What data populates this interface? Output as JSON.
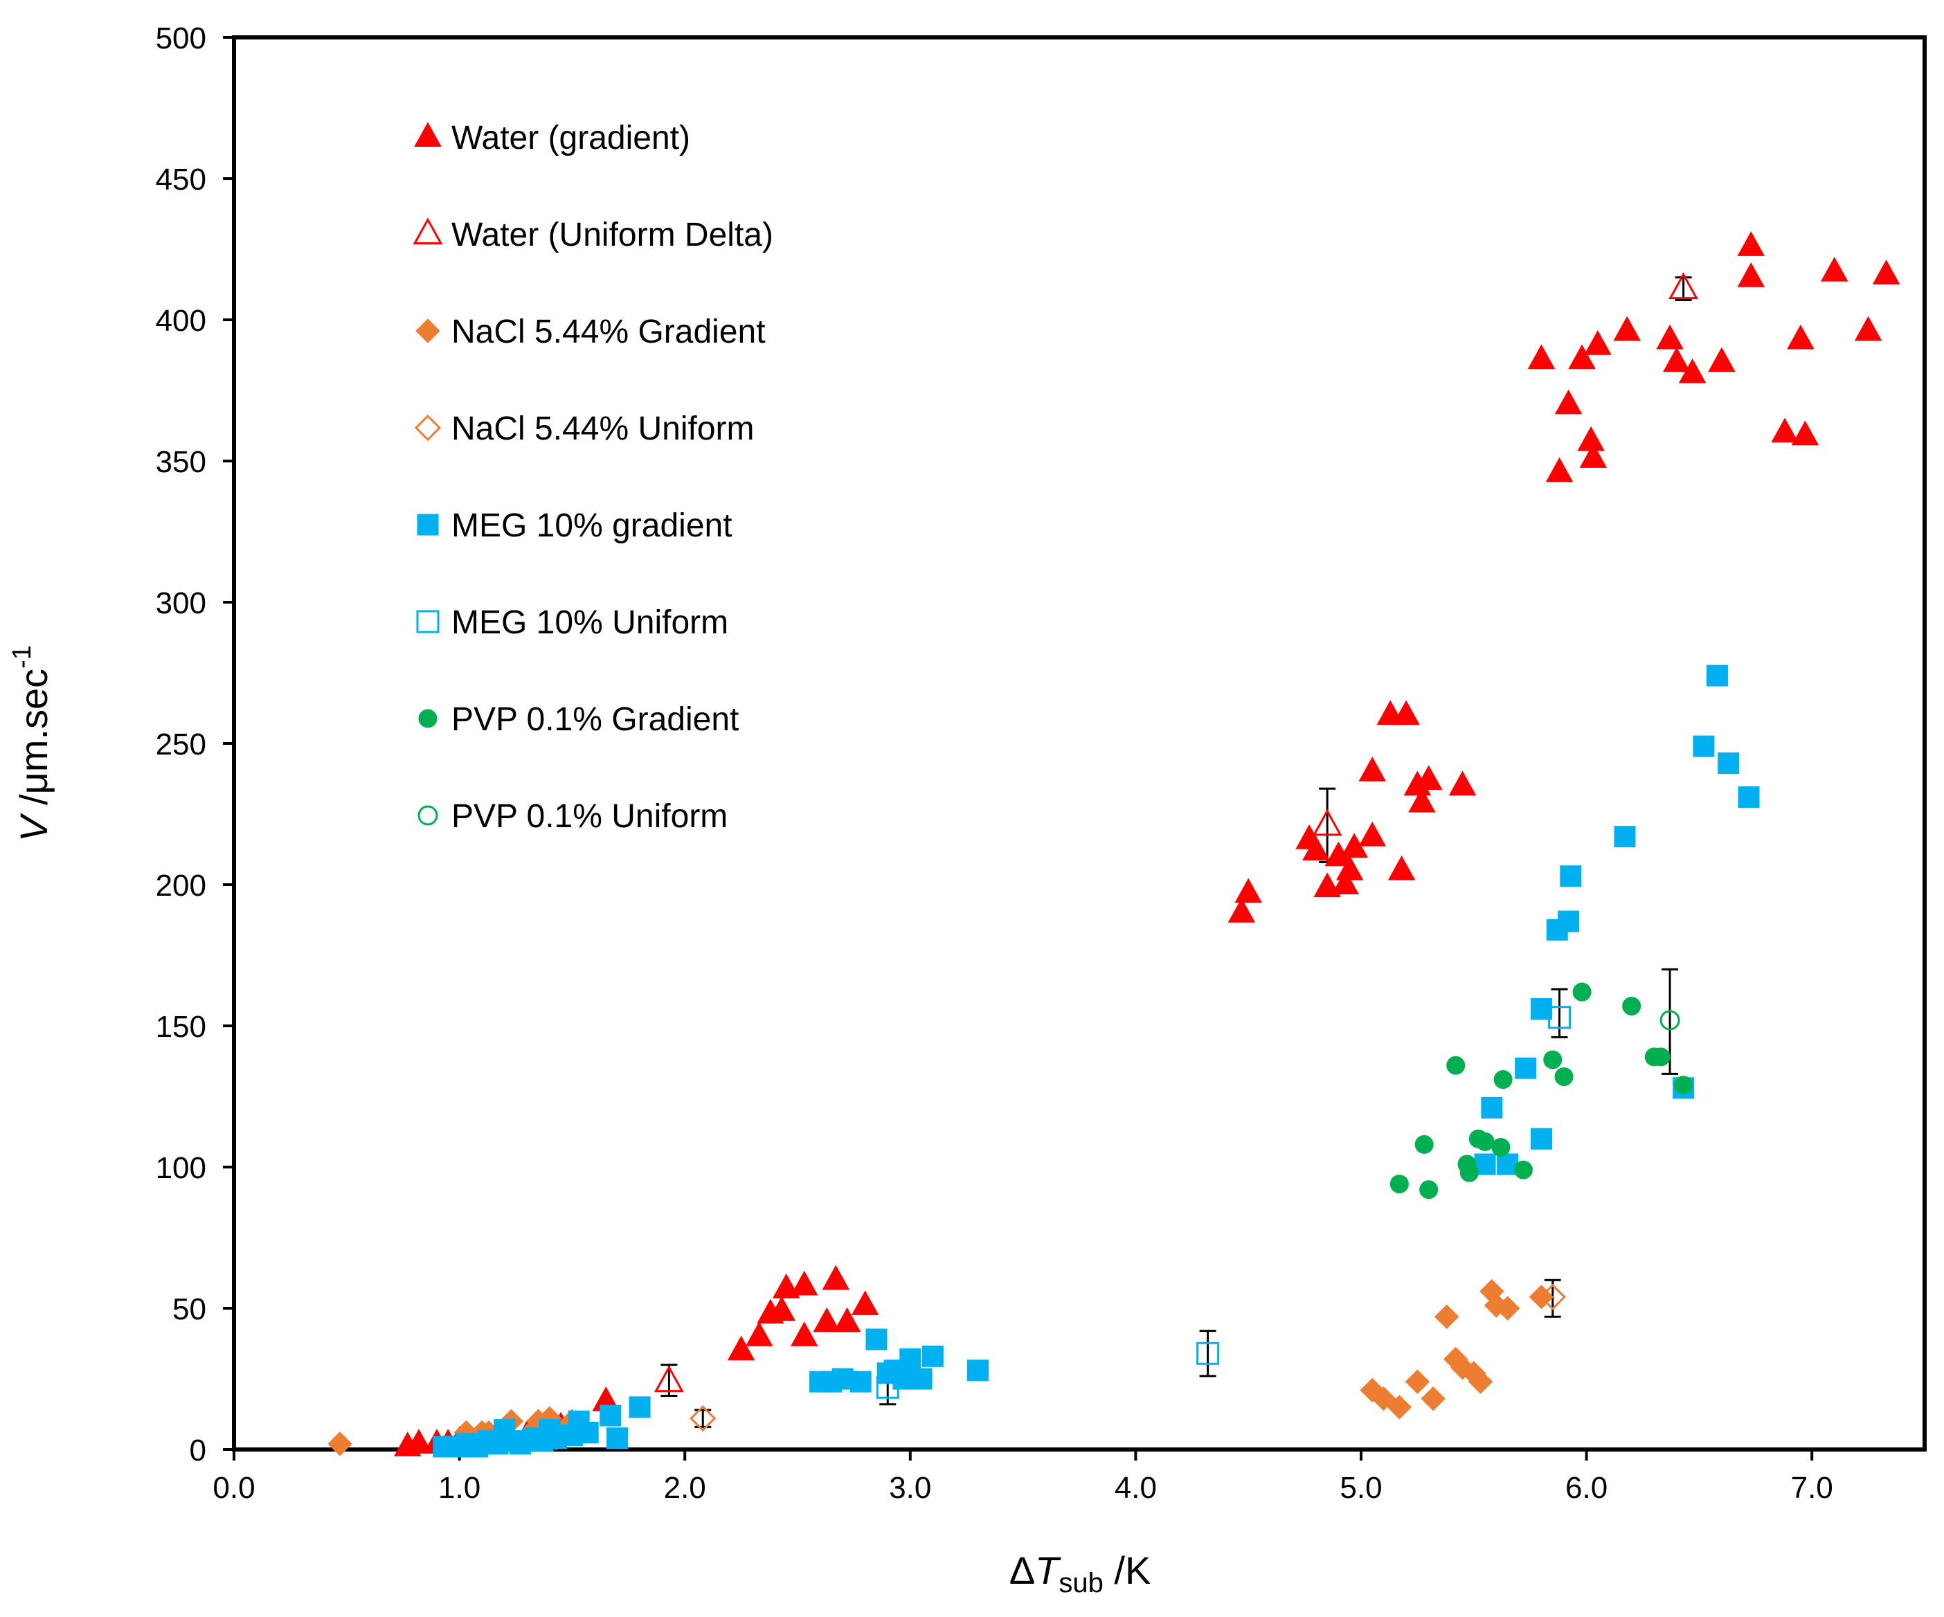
{
  "chart_data": {
    "type": "scatter",
    "title": "",
    "xlabel": {
      "delta": "Δ",
      "var": "T",
      "sub": "sub",
      "unit": " /K"
    },
    "ylabel": {
      "var": "V",
      "unit": " /μm.sec",
      "sup": "-1"
    },
    "xlim": [
      0,
      7.5
    ],
    "ylim": [
      0,
      500
    ],
    "xticks": [
      0,
      1,
      2,
      3,
      4,
      5,
      6,
      7
    ],
    "xtick_labels": [
      "0.0",
      "1.0",
      "2.0",
      "3.0",
      "4.0",
      "5.0",
      "6.0",
      "7.0"
    ],
    "yticks": [
      0,
      50,
      100,
      150,
      200,
      250,
      300,
      350,
      400,
      450,
      500
    ],
    "ytick_labels": [
      "0",
      "50",
      "100",
      "150",
      "200",
      "250",
      "300",
      "350",
      "400",
      "450",
      "500"
    ],
    "grid": false,
    "legend_position": "upper-left",
    "series": [
      {
        "name": "Water (gradient)",
        "marker": "triangle",
        "filled": true,
        "color": "#ff0000",
        "points": [
          [
            0.77,
            1
          ],
          [
            0.82,
            2
          ],
          [
            0.9,
            2
          ],
          [
            0.95,
            2
          ],
          [
            1.0,
            3
          ],
          [
            1.05,
            3
          ],
          [
            1.1,
            4
          ],
          [
            1.2,
            5
          ],
          [
            1.3,
            5
          ],
          [
            1.45,
            8
          ],
          [
            1.5,
            6
          ],
          [
            1.65,
            17
          ],
          [
            2.25,
            35
          ],
          [
            2.33,
            40
          ],
          [
            2.38,
            48
          ],
          [
            2.43,
            49
          ],
          [
            2.45,
            57
          ],
          [
            2.53,
            58
          ],
          [
            2.53,
            40
          ],
          [
            2.63,
            45
          ],
          [
            2.67,
            60
          ],
          [
            2.72,
            45
          ],
          [
            2.8,
            51
          ],
          [
            4.47,
            190
          ],
          [
            4.5,
            197
          ],
          [
            4.77,
            216
          ],
          [
            4.8,
            212
          ],
          [
            4.85,
            199
          ],
          [
            4.9,
            210
          ],
          [
            4.93,
            200
          ],
          [
            4.95,
            205
          ],
          [
            4.97,
            213
          ],
          [
            5.05,
            240
          ],
          [
            5.05,
            217
          ],
          [
            5.13,
            260
          ],
          [
            5.18,
            205
          ],
          [
            5.2,
            260
          ],
          [
            5.25,
            235
          ],
          [
            5.27,
            229
          ],
          [
            5.3,
            237
          ],
          [
            5.45,
            235
          ],
          [
            5.8,
            386
          ],
          [
            5.88,
            346
          ],
          [
            5.92,
            370
          ],
          [
            5.98,
            386
          ],
          [
            6.02,
            357
          ],
          [
            6.03,
            351
          ],
          [
            6.05,
            391
          ],
          [
            6.18,
            396
          ],
          [
            6.37,
            393
          ],
          [
            6.4,
            385
          ],
          [
            6.47,
            381
          ],
          [
            6.6,
            385
          ],
          [
            6.73,
            426
          ],
          [
            6.73,
            415
          ],
          [
            6.88,
            360
          ],
          [
            6.95,
            393
          ],
          [
            6.97,
            359
          ],
          [
            7.1,
            417
          ],
          [
            7.25,
            396
          ],
          [
            7.33,
            416
          ]
        ],
        "error_bars": []
      },
      {
        "name": "Water (Uniform Delta)",
        "marker": "triangle",
        "filled": false,
        "color": "#ff0000",
        "points": [
          [
            1.93,
            24
          ],
          [
            4.85,
            221
          ],
          [
            6.43,
            411
          ]
        ],
        "error_bars": [
          [
            1.93,
            19,
            30
          ],
          [
            4.85,
            208,
            234
          ],
          [
            6.43,
            407,
            415
          ]
        ]
      },
      {
        "name": "NaCl 5.44% Gradient",
        "marker": "diamond",
        "filled": true,
        "color": "#ed7d31",
        "points": [
          [
            0.47,
            2
          ],
          [
            1.03,
            6
          ],
          [
            1.1,
            6
          ],
          [
            1.13,
            6
          ],
          [
            1.23,
            10
          ],
          [
            1.33,
            7
          ],
          [
            1.35,
            10
          ],
          [
            1.4,
            11
          ],
          [
            1.43,
            4
          ],
          [
            1.47,
            7
          ],
          [
            1.5,
            10
          ],
          [
            5.05,
            21
          ],
          [
            5.1,
            18
          ],
          [
            5.17,
            15
          ],
          [
            5.25,
            24
          ],
          [
            5.32,
            18
          ],
          [
            5.38,
            47
          ],
          [
            5.42,
            32
          ],
          [
            5.45,
            29
          ],
          [
            5.5,
            27
          ],
          [
            5.53,
            24
          ],
          [
            5.58,
            56
          ],
          [
            5.6,
            51
          ],
          [
            5.65,
            50
          ],
          [
            5.8,
            54
          ]
        ],
        "error_bars": []
      },
      {
        "name": "NaCl 5.44% Uniform",
        "marker": "diamond",
        "filled": false,
        "color": "#ed7d31",
        "points": [
          [
            2.08,
            11
          ],
          [
            5.85,
            54
          ]
        ],
        "error_bars": [
          [
            2.08,
            8,
            14
          ],
          [
            5.85,
            47,
            60
          ]
        ]
      },
      {
        "name": "MEG 10% gradient",
        "marker": "square",
        "filled": true,
        "color": "#00b0f0",
        "points": [
          [
            0.93,
            1
          ],
          [
            0.97,
            1
          ],
          [
            1.0,
            1
          ],
          [
            1.03,
            2
          ],
          [
            1.05,
            1
          ],
          [
            1.08,
            1
          ],
          [
            1.1,
            2
          ],
          [
            1.13,
            3
          ],
          [
            1.17,
            2
          ],
          [
            1.2,
            7
          ],
          [
            1.23,
            3
          ],
          [
            1.27,
            2
          ],
          [
            1.3,
            3
          ],
          [
            1.33,
            4
          ],
          [
            1.37,
            3
          ],
          [
            1.4,
            7
          ],
          [
            1.43,
            4
          ],
          [
            1.45,
            5
          ],
          [
            1.5,
            5
          ],
          [
            1.53,
            10
          ],
          [
            1.57,
            6
          ],
          [
            1.67,
            12
          ],
          [
            1.7,
            4
          ],
          [
            1.8,
            15
          ],
          [
            2.6,
            24
          ],
          [
            2.65,
            24
          ],
          [
            2.7,
            25
          ],
          [
            2.78,
            24
          ],
          [
            2.85,
            39
          ],
          [
            2.9,
            27
          ],
          [
            2.93,
            28
          ],
          [
            2.97,
            25
          ],
          [
            3.0,
            32
          ],
          [
            3.05,
            25
          ],
          [
            3.1,
            33
          ],
          [
            3.3,
            28
          ],
          [
            5.55,
            101
          ],
          [
            5.58,
            121
          ],
          [
            5.65,
            101
          ],
          [
            5.73,
            135
          ],
          [
            5.8,
            156
          ],
          [
            5.8,
            110
          ],
          [
            5.87,
            184
          ],
          [
            5.92,
            187
          ],
          [
            5.93,
            203
          ],
          [
            6.17,
            217
          ],
          [
            6.43,
            128
          ],
          [
            6.52,
            249
          ],
          [
            6.58,
            274
          ],
          [
            6.63,
            243
          ],
          [
            6.72,
            231
          ]
        ],
        "error_bars": []
      },
      {
        "name": "MEG 10% Uniform",
        "marker": "square",
        "filled": false,
        "color": "#00b0f0",
        "points": [
          [
            2.9,
            22
          ],
          [
            4.32,
            34
          ],
          [
            5.88,
            153
          ]
        ],
        "error_bars": [
          [
            2.9,
            16,
            30
          ],
          [
            4.32,
            26,
            42
          ],
          [
            5.88,
            146,
            163
          ]
        ]
      },
      {
        "name": "PVP 0.1% Gradient",
        "marker": "circle",
        "filled": true,
        "color": "#00b050",
        "points": [
          [
            5.17,
            94
          ],
          [
            5.28,
            108
          ],
          [
            5.3,
            92
          ],
          [
            5.42,
            136
          ],
          [
            5.47,
            101
          ],
          [
            5.48,
            98
          ],
          [
            5.52,
            110
          ],
          [
            5.55,
            109
          ],
          [
            5.62,
            107
          ],
          [
            5.63,
            131
          ],
          [
            5.72,
            99
          ],
          [
            5.85,
            138
          ],
          [
            5.9,
            132
          ],
          [
            5.98,
            162
          ],
          [
            6.2,
            157
          ],
          [
            6.3,
            139
          ],
          [
            6.33,
            139
          ],
          [
            6.43,
            129
          ]
        ],
        "error_bars": []
      },
      {
        "name": "PVP  0.1% Uniform",
        "marker": "circle",
        "filled": false,
        "color": "#00b050",
        "points": [
          [
            6.37,
            152
          ]
        ],
        "error_bars": [
          [
            6.37,
            133,
            170
          ]
        ]
      }
    ]
  }
}
